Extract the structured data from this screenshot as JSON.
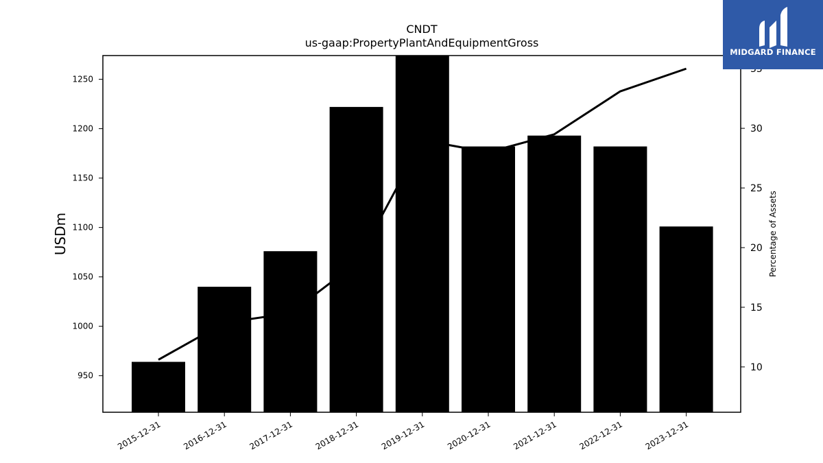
{
  "chart_data": {
    "type": "bar",
    "title": "CNDT",
    "subtitle": "us-gaap:PropertyPlantAndEquipmentGross",
    "ylabel": "USDm",
    "y2label": "Percentage of Assets",
    "categories": [
      "2015-12-31",
      "2016-12-31",
      "2017-12-31",
      "2018-12-31",
      "2019-12-31",
      "2020-12-31",
      "2021-12-31",
      "2022-12-31",
      "2023-12-31"
    ],
    "series": [
      {
        "type": "bar",
        "axis": "left",
        "values": [
          964,
          1040,
          1076,
          1222,
          1274,
          1182,
          1193,
          1182,
          1101
        ],
        "color": "#000000"
      },
      {
        "type": "line",
        "axis": "right",
        "values": [
          10.6,
          13.7,
          14.5,
          18.7,
          29.0,
          28.0,
          29.5,
          33.1,
          35.0
        ],
        "color": "#000000"
      }
    ],
    "ylim": [
      913,
      1274
    ],
    "y2lim": [
      6.2,
      36.1
    ],
    "yticks": [
      950,
      1000,
      1050,
      1100,
      1150,
      1200,
      1250
    ],
    "y2ticks": [
      10,
      15,
      20,
      25,
      30,
      35
    ],
    "grid": false
  },
  "logo": {
    "text": "MIDGARD FINANCE",
    "color": "#2f5aa8"
  }
}
